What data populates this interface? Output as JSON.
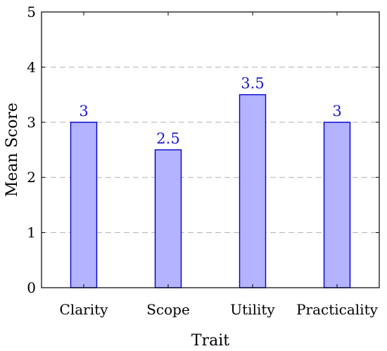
{
  "chart_data": {
    "type": "bar",
    "categories": [
      "Clarity",
      "Scope",
      "Utility",
      "Practicality"
    ],
    "values": [
      3,
      2.5,
      3.5,
      3
    ],
    "data_labels": [
      "3",
      "2.5",
      "3.5",
      "3"
    ],
    "title": "",
    "xlabel": "Trait",
    "ylabel": "Mean Score",
    "ylim": [
      0,
      5
    ],
    "yticks": [
      0,
      1,
      2,
      3,
      4,
      5
    ],
    "ytick_labels": [
      "0",
      "1",
      "2",
      "3",
      "4",
      "5"
    ],
    "grid": "horizontal dashed",
    "legend": "none",
    "colors": {
      "bar_fill": "#b3b3ff",
      "bar_stroke": "#0000cc",
      "data_label": "#1a1acc",
      "grid": "#b0b0b0",
      "axis": "#000000"
    }
  }
}
